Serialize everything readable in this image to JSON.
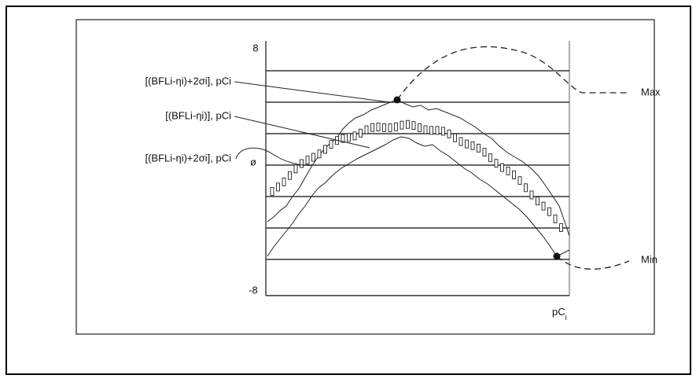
{
  "axis": {
    "top": "8",
    "middle": "ø",
    "bottom": "-8",
    "x_label": "pC",
    "x_label_sub": "i"
  },
  "labels": [
    "[(BFLi-ηi)+2σi], pCi",
    "[(BFLi-ηi)], pCi",
    "[(BFLi-ηi)+2σi], pCi"
  ],
  "markers": {
    "max": "Max",
    "min": "Min"
  }
}
